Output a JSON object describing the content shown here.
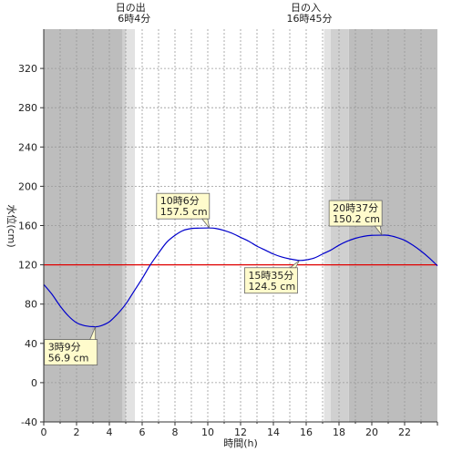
{
  "chart_data": {
    "type": "line",
    "xlabel": "時間(h)",
    "ylabel": "水位(cm)",
    "xlim": [
      0,
      24
    ],
    "ylim": [
      -40,
      360
    ],
    "x_ticks": [
      0,
      2,
      4,
      6,
      8,
      10,
      12,
      14,
      16,
      18,
      20,
      22
    ],
    "x_tick_labels": [
      "0",
      "2",
      "4",
      "6",
      "8",
      "10",
      "12",
      "14",
      "16",
      "18",
      "20",
      "22"
    ],
    "y_ticks": [
      -40,
      0,
      40,
      80,
      120,
      160,
      200,
      240,
      280,
      320
    ],
    "y_tick_labels": [
      "-40",
      "0",
      "40",
      "80",
      "120",
      "160",
      "200",
      "240",
      "280",
      "320"
    ],
    "grid": true,
    "daylight": {
      "dark_regions": [
        [
          0,
          4.8
        ],
        [
          18.6,
          24
        ]
      ],
      "twilight_regions": [
        [
          4.8,
          5.55
        ],
        [
          17.1,
          18.6
        ]
      ],
      "light_twilight_regions": [
        [
          5.0,
          5.55
        ],
        [
          17.1,
          17.5
        ]
      ]
    },
    "sun_events": [
      {
        "name": "日の出",
        "time": "6時4分",
        "x": 6.07
      },
      {
        "name": "日の入",
        "time": "16時45分",
        "x": 16.75
      }
    ],
    "reference_line": {
      "y": 120,
      "color": "#e00000"
    },
    "series": [
      {
        "color": "#0000cc",
        "x": [
          0,
          0.5,
          1,
          1.5,
          2,
          2.5,
          3.15,
          3.5,
          4,
          4.5,
          5,
          5.5,
          6,
          6.5,
          7,
          7.5,
          8,
          8.5,
          9,
          9.5,
          10.1,
          10.5,
          11,
          11.5,
          12,
          12.5,
          13,
          13.5,
          14,
          14.5,
          15,
          15.58,
          16,
          16.5,
          17,
          17.5,
          18,
          18.5,
          19,
          19.5,
          20,
          20.62,
          21,
          21.5,
          22,
          22.5,
          23,
          23.5,
          24
        ],
        "y": [
          100,
          90,
          78,
          68,
          61,
          58,
          56.9,
          58,
          62,
          70,
          80,
          93,
          106,
          120,
          132,
          143,
          150,
          155,
          157,
          157.4,
          157.5,
          157,
          155,
          152,
          148,
          144,
          139,
          135,
          131,
          128,
          126,
          124.5,
          125,
          127,
          131,
          135,
          140,
          144,
          147,
          149,
          150,
          150.2,
          150,
          148,
          145,
          140,
          134,
          127,
          119
        ]
      }
    ],
    "annotations": [
      {
        "x": 3.15,
        "y": 56.9,
        "label_time": "3時9分",
        "label_value": "56.9 cm"
      },
      {
        "x": 10.1,
        "y": 157.5,
        "label_time": "10時6分",
        "label_value": "157.5 cm"
      },
      {
        "x": 15.58,
        "y": 124.5,
        "label_time": "15時35分",
        "label_value": "124.5 cm"
      },
      {
        "x": 20.62,
        "y": 150.2,
        "label_time": "20時37分",
        "label_value": "150.2 cm"
      }
    ]
  }
}
